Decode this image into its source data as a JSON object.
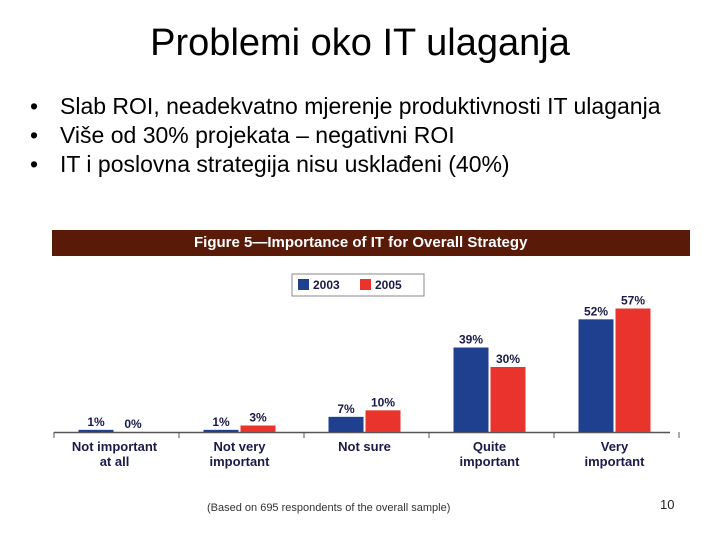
{
  "slide": {
    "title": "Problemi oko IT ulaganja",
    "bullets": [
      "Slab ROI, neadekvatno mjerenje produktivnosti IT ulaganja",
      "Više od 30% projekata – negativni ROI",
      "IT i poslovna strategija nisu usklađeni (40%)"
    ],
    "page_number": "10"
  },
  "chart_data": {
    "type": "bar",
    "title": "Figure 5—Importance of IT for Overall Strategy",
    "note": "(Based on 695 respondents of the overall sample)",
    "categories": [
      [
        "Not important",
        "at all"
      ],
      [
        "Not very",
        "important"
      ],
      [
        "Not sure"
      ],
      [
        "Quite",
        "important"
      ],
      [
        "Very",
        "important"
      ]
    ],
    "series": [
      {
        "name": "2003",
        "color": "#1f3f8f",
        "values": [
          1,
          1,
          7,
          39,
          52
        ]
      },
      {
        "name": "2005",
        "color": "#e8342c",
        "values": [
          0,
          3,
          10,
          30,
          57
        ]
      }
    ],
    "value_suffix": "%",
    "ylim": [
      0,
      60
    ],
    "grid": false,
    "legend": "top-center"
  }
}
